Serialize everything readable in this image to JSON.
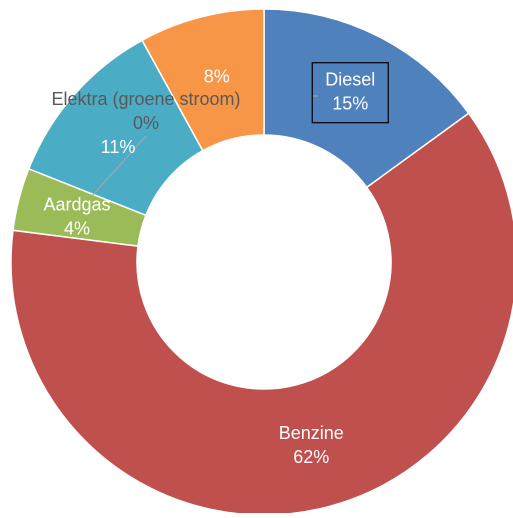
{
  "chart_data": {
    "type": "pie",
    "variant": "donut",
    "legend": "none",
    "slices": [
      {
        "label": "Diesel",
        "value": 15,
        "value_text": "15%",
        "color": "#4F81BD"
      },
      {
        "label": "Benzine",
        "value": 62,
        "value_text": "62%",
        "color": "#C0504D"
      },
      {
        "label": "Aardgas",
        "value": 4,
        "value_text": "4%",
        "color": "#9BBB59"
      },
      {
        "label": "",
        "value": 11,
        "value_text": "11%",
        "color": "#4BACC6"
      },
      {
        "label": "Elektra (groene stroom)",
        "value": 0,
        "value_text": "0%",
        "color": "#8064A2"
      },
      {
        "label": "",
        "value": 8,
        "value_text": "8%",
        "color": "#F79646"
      }
    ]
  }
}
